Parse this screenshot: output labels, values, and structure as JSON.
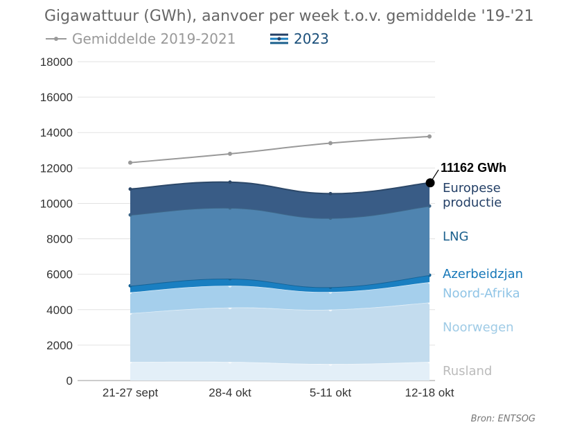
{
  "chart_data": {
    "type": "area",
    "title": "Gigawattuur (GWh), aanvoer per week t.o.v. gemiddelde '19-'21",
    "categories": [
      "21-27 sept",
      "28-4 okt",
      "5-11 okt",
      "12-18 okt"
    ],
    "ylim": [
      0,
      18000
    ],
    "yticks": [
      "0",
      "2000",
      "4000",
      "6000",
      "8000",
      "10000",
      "12000",
      "14000",
      "16000",
      "18000"
    ],
    "legend": {
      "average_label": "Gemiddelde 2019-2021",
      "current_label": "2023"
    },
    "average": {
      "name": "Gemiddelde 2019-2021",
      "color": "#999999",
      "values": [
        12300,
        12800,
        13400,
        13780
      ]
    },
    "series": [
      {
        "name": "Rusland",
        "color": "#e3eff8",
        "label_color": "#bbbbbb",
        "values": [
          1050,
          1050,
          930,
          1050
        ]
      },
      {
        "name": "Noorwegen",
        "color": "#c3dcee",
        "label_color": "#9fcbe6",
        "values": [
          2750,
          3070,
          3070,
          3350
        ]
      },
      {
        "name": "Noord-Afrika",
        "color": "#a5cfec",
        "label_color": "#8fc4e6",
        "values": [
          1180,
          1230,
          1000,
          1150
        ]
      },
      {
        "name": "Azerbeidzjan",
        "color": "#1a7fc1",
        "label_color": "#1577b8",
        "values": [
          370,
          400,
          270,
          400
        ]
      },
      {
        "name": "LNG",
        "color": "#4f84b0",
        "label_color": "#1a5f8c",
        "values": [
          4000,
          4000,
          3900,
          3900
        ]
      },
      {
        "name": "Europese productie",
        "color": "#395c86",
        "label_color": "#233f66",
        "values": [
          1460,
          1450,
          1380,
          1312
        ]
      }
    ],
    "label_lines": [
      {
        "text": "Europese",
        "series": 5
      },
      {
        "text": "productie",
        "series": 5
      },
      {
        "text": "LNG",
        "series": 4
      },
      {
        "text": "Azerbeidzjan",
        "series": 3
      },
      {
        "text": "Noord-Afrika",
        "series": 2
      },
      {
        "text": "Noorwegen",
        "series": 1
      },
      {
        "text": "Rusland",
        "series": 0
      }
    ],
    "callout": "11162 GWh",
    "source": "Bron: ENTSOG"
  }
}
